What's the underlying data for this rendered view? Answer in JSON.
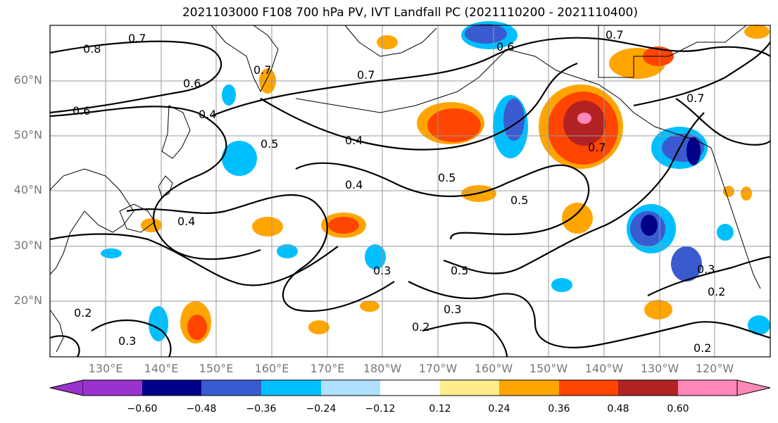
{
  "title": "2021103000 F108 700 hPa PV, IVT Landfall PC (2021110200 - 2021110400)",
  "lat_labels": [
    "60°N",
    "50°N",
    "40°N",
    "30°N",
    "20°N"
  ],
  "lon_labels": [
    "130°E",
    "140°E",
    "150°E",
    "160°E",
    "170°E",
    "180°W",
    "170°W",
    "160°W",
    "150°W",
    "140°W",
    "130°W",
    "120°W"
  ],
  "colorbar": {
    "ticks": [
      "−0.60",
      "−0.48",
      "−0.36",
      "−0.24",
      "−0.12",
      "0.12",
      "0.24",
      "0.36",
      "0.48",
      "0.60"
    ],
    "colors": [
      "#9932cc",
      "#00008b",
      "#3a5bd0",
      "#00bfff",
      "#b0e0ff",
      "#ffffff",
      "#ffec8b",
      "#ffa500",
      "#ff4500",
      "#b22222",
      "#ff88b8"
    ]
  },
  "contour_labels": [
    "0.8",
    "0.7",
    "0.6",
    "0.4",
    "0.5",
    "0.3",
    "0.2"
  ]
}
